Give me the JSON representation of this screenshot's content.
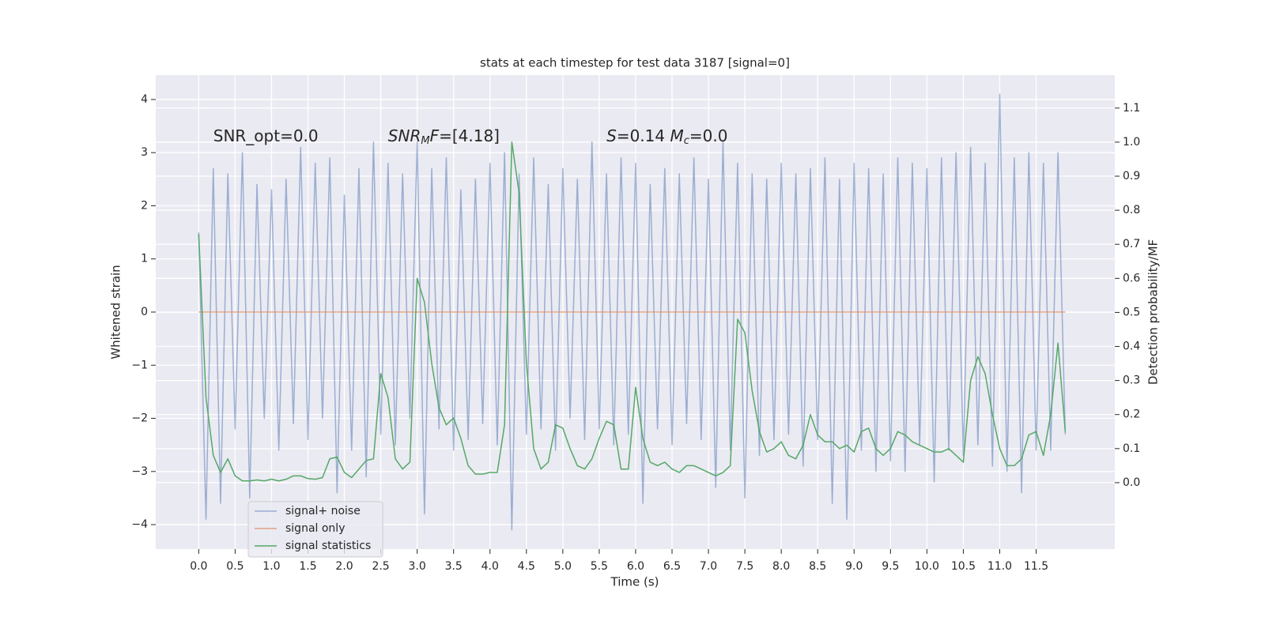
{
  "chart_data": {
    "type": "line",
    "title": "stats at each timestep for test data 3187 [signal=0]",
    "xlabel": "Time (s)",
    "ylabel": "Whitened strain",
    "y2label": "Detection probability/MF",
    "annotations": [
      {
        "x": 0.2,
        "y": 3.3,
        "parts": [
          {
            "text": "SNR_opt=0.0",
            "style": "normal"
          }
        ]
      },
      {
        "x": 2.6,
        "y": 3.3,
        "parts": [
          {
            "text": "SNR",
            "style": "italic"
          },
          {
            "text": "M",
            "style": "sub"
          },
          {
            "text": "F",
            "style": "italic"
          },
          {
            "text": "=[4.18]",
            "style": "normal"
          }
        ]
      },
      {
        "x": 5.6,
        "y": 3.3,
        "parts": [
          {
            "text": "S",
            "style": "italic"
          },
          {
            "text": "=0.14   ",
            "style": "normal"
          },
          {
            "text": "M",
            "style": "italic"
          },
          {
            "text": "c",
            "style": "sub"
          },
          {
            "text": "=0.0",
            "style": "normal"
          }
        ]
      }
    ],
    "x": [
      0,
      0.1,
      0.2,
      0.3,
      0.4,
      0.5,
      0.6,
      0.7,
      0.8,
      0.9,
      1.0,
      1.1,
      1.2,
      1.3,
      1.4,
      1.5,
      1.6,
      1.7,
      1.8,
      1.9,
      2.0,
      2.1,
      2.2,
      2.3,
      2.4,
      2.5,
      2.6,
      2.7,
      2.8,
      2.9,
      3.0,
      3.1,
      3.2,
      3.3,
      3.4,
      3.5,
      3.6,
      3.7,
      3.8,
      3.9,
      4.0,
      4.1,
      4.2,
      4.3,
      4.4,
      4.5,
      4.6,
      4.7,
      4.8,
      4.9,
      5.0,
      5.1,
      5.2,
      5.3,
      5.4,
      5.5,
      5.6,
      5.7,
      5.8,
      5.9,
      6.0,
      6.1,
      6.2,
      6.3,
      6.4,
      6.5,
      6.6,
      6.7,
      6.8,
      6.9,
      7.0,
      7.1,
      7.2,
      7.3,
      7.4,
      7.5,
      7.6,
      7.7,
      7.8,
      7.9,
      8.0,
      8.1,
      8.2,
      8.3,
      8.4,
      8.5,
      8.6,
      8.7,
      8.8,
      8.9,
      9.0,
      9.1,
      9.2,
      9.3,
      9.4,
      9.5,
      9.6,
      9.7,
      9.8,
      9.9,
      10.0,
      10.1,
      10.2,
      10.3,
      10.4,
      10.5,
      10.6,
      10.7,
      10.8,
      10.9,
      11.0,
      11.1,
      11.2,
      11.3,
      11.4,
      11.5,
      11.6,
      11.7,
      11.8,
      11.9
    ],
    "series": [
      {
        "name": "signal+ noise",
        "color": "#4c72b0",
        "opacity": 0.5,
        "axis": "y",
        "values": [
          1.5,
          -3.9,
          2.7,
          -3.6,
          2.6,
          -2.2,
          3.0,
          -3.5,
          2.4,
          -2.0,
          2.3,
          -2.6,
          2.5,
          -2.1,
          3.1,
          -2.4,
          2.8,
          -2.0,
          2.9,
          -3.4,
          2.2,
          -2.6,
          2.7,
          -3.1,
          3.2,
          -2.3,
          2.8,
          -2.5,
          2.6,
          -2.0,
          3.2,
          -3.8,
          2.7,
          -2.2,
          2.9,
          -2.6,
          2.3,
          -2.4,
          2.5,
          -2.1,
          2.8,
          -2.5,
          3.0,
          -4.1,
          2.6,
          -2.3,
          2.9,
          -2.2,
          2.4,
          -2.6,
          2.7,
          -2.0,
          2.5,
          -2.4,
          3.2,
          -2.2,
          2.6,
          -2.5,
          2.9,
          -2.3,
          2.8,
          -3.6,
          2.4,
          -2.2,
          2.7,
          -2.5,
          2.6,
          -2.1,
          2.9,
          -2.4,
          2.5,
          -3.3,
          3.2,
          -2.6,
          2.8,
          -3.5,
          2.6,
          -2.7,
          2.5,
          -2.4,
          2.8,
          -2.3,
          2.6,
          -2.9,
          2.7,
          -2.4,
          2.9,
          -3.6,
          2.5,
          -3.9,
          2.8,
          -2.6,
          2.7,
          -3.0,
          2.6,
          -2.8,
          2.9,
          -3.0,
          2.8,
          -2.5,
          2.7,
          -3.2,
          2.9,
          -2.6,
          3.0,
          -2.7,
          3.1,
          -2.5,
          2.8,
          -2.9,
          4.1,
          -3.0,
          2.9,
          -3.4,
          3.0,
          -2.6,
          2.8,
          -2.6,
          3.0,
          -2.3
        ]
      },
      {
        "name": "signal only",
        "color": "#dd8452",
        "opacity": 0.7,
        "axis": "y",
        "values": [
          0,
          0,
          0,
          0,
          0,
          0,
          0,
          0,
          0,
          0,
          0,
          0,
          0,
          0,
          0,
          0,
          0,
          0,
          0,
          0,
          0,
          0,
          0,
          0,
          0,
          0,
          0,
          0,
          0,
          0,
          0,
          0,
          0,
          0,
          0,
          0,
          0,
          0,
          0,
          0,
          0,
          0,
          0,
          0,
          0,
          0,
          0,
          0,
          0,
          0,
          0,
          0,
          0,
          0,
          0,
          0,
          0,
          0,
          0,
          0,
          0,
          0,
          0,
          0,
          0,
          0,
          0,
          0,
          0,
          0,
          0,
          0,
          0,
          0,
          0,
          0,
          0,
          0,
          0,
          0,
          0,
          0,
          0,
          0,
          0,
          0,
          0,
          0,
          0,
          0,
          0,
          0,
          0,
          0,
          0,
          0,
          0,
          0,
          0,
          0,
          0,
          0,
          0,
          0,
          0,
          0,
          0,
          0,
          0,
          0,
          0,
          0,
          0,
          0,
          0,
          0,
          0,
          0,
          0,
          0
        ]
      },
      {
        "name": "signal statistics",
        "color": "#55a868",
        "opacity": 1,
        "axis": "y2",
        "values": [
          0.73,
          0.25,
          0.08,
          0.03,
          0.07,
          0.02,
          0.005,
          0.005,
          0.008,
          0.005,
          0.01,
          0.005,
          0.01,
          0.02,
          0.02,
          0.012,
          0.01,
          0.015,
          0.07,
          0.075,
          0.03,
          0.015,
          0.04,
          0.065,
          0.07,
          0.32,
          0.25,
          0.07,
          0.04,
          0.06,
          0.6,
          0.53,
          0.35,
          0.22,
          0.17,
          0.19,
          0.13,
          0.05,
          0.025,
          0.025,
          0.03,
          0.03,
          0.17,
          1.0,
          0.85,
          0.35,
          0.1,
          0.04,
          0.06,
          0.17,
          0.16,
          0.1,
          0.05,
          0.04,
          0.07,
          0.13,
          0.18,
          0.17,
          0.04,
          0.04,
          0.28,
          0.13,
          0.06,
          0.05,
          0.06,
          0.04,
          0.03,
          0.05,
          0.05,
          0.04,
          0.03,
          0.02,
          0.03,
          0.05,
          0.48,
          0.44,
          0.27,
          0.15,
          0.09,
          0.1,
          0.12,
          0.08,
          0.07,
          0.11,
          0.2,
          0.14,
          0.12,
          0.12,
          0.1,
          0.11,
          0.09,
          0.15,
          0.16,
          0.1,
          0.08,
          0.1,
          0.15,
          0.14,
          0.12,
          0.11,
          0.1,
          0.09,
          0.09,
          0.1,
          0.08,
          0.06,
          0.3,
          0.37,
          0.32,
          0.2,
          0.1,
          0.05,
          0.05,
          0.07,
          0.14,
          0.15,
          0.08,
          0.2,
          0.41,
          0.15
        ]
      }
    ],
    "xlim": [
      -0.59,
      12.58
    ],
    "ylim": [
      -4.46,
      4.46
    ],
    "y2lim": [
      -0.195,
      1.197
    ],
    "xticks": [
      {
        "value": 0,
        "label": "0.0"
      },
      0.5,
      {
        "value": 1,
        "label": "1.0"
      },
      1.5,
      {
        "value": 2,
        "label": "2.0"
      },
      2.5,
      {
        "value": 3,
        "label": "3.0"
      },
      3.5,
      {
        "value": 4,
        "label": "4.0"
      },
      4.5,
      {
        "value": 5,
        "label": "5.0"
      },
      5.5,
      {
        "value": 6,
        "label": "6.0"
      },
      6.5,
      {
        "value": 7,
        "label": "7.0"
      },
      7.5,
      {
        "value": 8,
        "label": "8.0"
      },
      8.5,
      {
        "value": 9,
        "label": "9.0"
      },
      9.5,
      {
        "value": 10,
        "label": "10.0"
      },
      10.5,
      {
        "value": 11,
        "label": "11.0"
      },
      11.5
    ],
    "yticks": [
      {
        "value": -4,
        "label": "−4"
      },
      {
        "value": -3,
        "label": "−3"
      },
      {
        "value": -2,
        "label": "−2"
      },
      {
        "value": -1,
        "label": "−1"
      },
      0,
      1,
      2,
      3,
      4
    ],
    "y2ticks": [
      {
        "value": 0,
        "label": "0.0"
      },
      0.1,
      0.2,
      0.3,
      0.4,
      0.5,
      0.6,
      0.7,
      0.8,
      0.9,
      {
        "value": 1,
        "label": "1.0"
      },
      1.1
    ],
    "grid": true,
    "legend": "lower left"
  }
}
